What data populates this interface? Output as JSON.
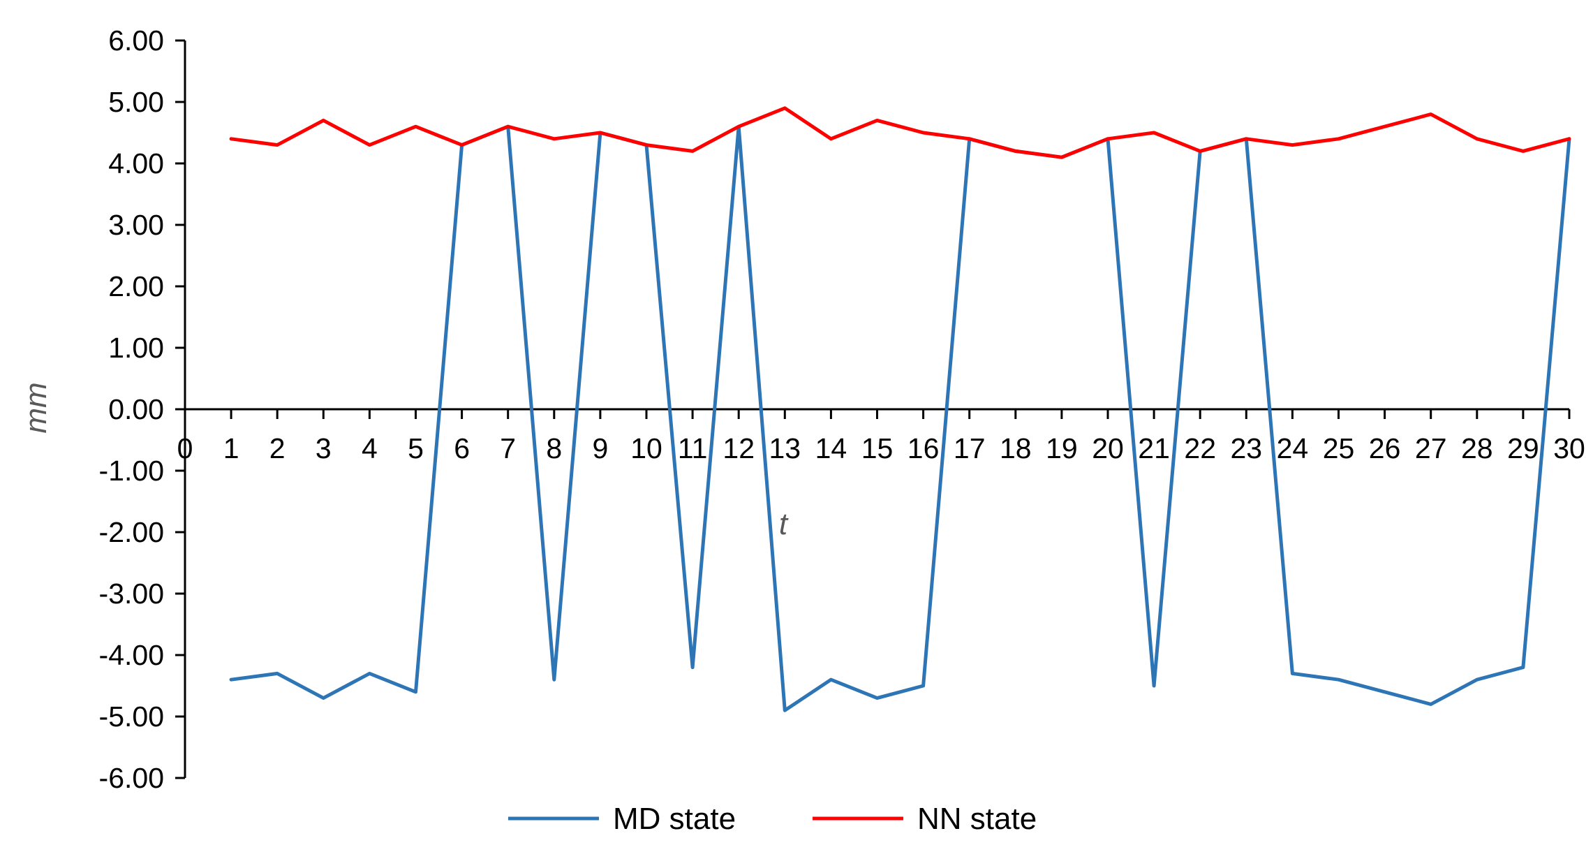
{
  "chart_data": {
    "type": "line",
    "title": "",
    "xlabel": "t",
    "ylabel": "mm",
    "x": [
      1,
      2,
      3,
      4,
      5,
      6,
      7,
      8,
      9,
      10,
      11,
      12,
      13,
      14,
      15,
      16,
      17,
      18,
      19,
      20,
      21,
      22,
      23,
      24,
      25,
      26,
      27,
      28,
      29,
      30
    ],
    "x_ticks": [
      "0",
      "1",
      "2",
      "3",
      "4",
      "5",
      "6",
      "7",
      "8",
      "9",
      "10",
      "11",
      "12",
      "13",
      "14",
      "15",
      "16",
      "17",
      "18",
      "19",
      "20",
      "21",
      "22",
      "23",
      "24",
      "25",
      "26",
      "27",
      "28",
      "29",
      "30"
    ],
    "xlim": [
      0,
      30
    ],
    "ylim": [
      -6,
      6
    ],
    "y_ticks": [
      "6.00",
      "5.00",
      "4.00",
      "3.00",
      "2.00",
      "1.00",
      "0.00",
      "-1.00",
      "-2.00",
      "-3.00",
      "-4.00",
      "-5.00",
      "-6.00"
    ],
    "grid": false,
    "legend_position": "bottom",
    "series": [
      {
        "name": "MD state",
        "color": "#2E75B6",
        "values": [
          -4.4,
          -4.3,
          -4.7,
          -4.3,
          -4.6,
          4.3,
          4.6,
          -4.4,
          4.5,
          4.3,
          -4.2,
          4.6,
          -4.9,
          -4.4,
          -4.7,
          -4.5,
          4.4,
          4.2,
          4.1,
          4.4,
          -4.5,
          4.2,
          4.4,
          -4.3,
          -4.4,
          -4.6,
          -4.8,
          -4.4,
          -4.2,
          4.4
        ]
      },
      {
        "name": "NN state",
        "color": "#FF0000",
        "values": [
          4.4,
          4.3,
          4.7,
          4.3,
          4.6,
          4.3,
          4.6,
          4.4,
          4.5,
          4.3,
          4.2,
          4.6,
          4.9,
          4.4,
          4.7,
          4.5,
          4.4,
          4.2,
          4.1,
          4.4,
          4.5,
          4.2,
          4.4,
          4.3,
          4.4,
          4.6,
          4.8,
          4.4,
          4.2,
          4.4
        ]
      }
    ]
  }
}
